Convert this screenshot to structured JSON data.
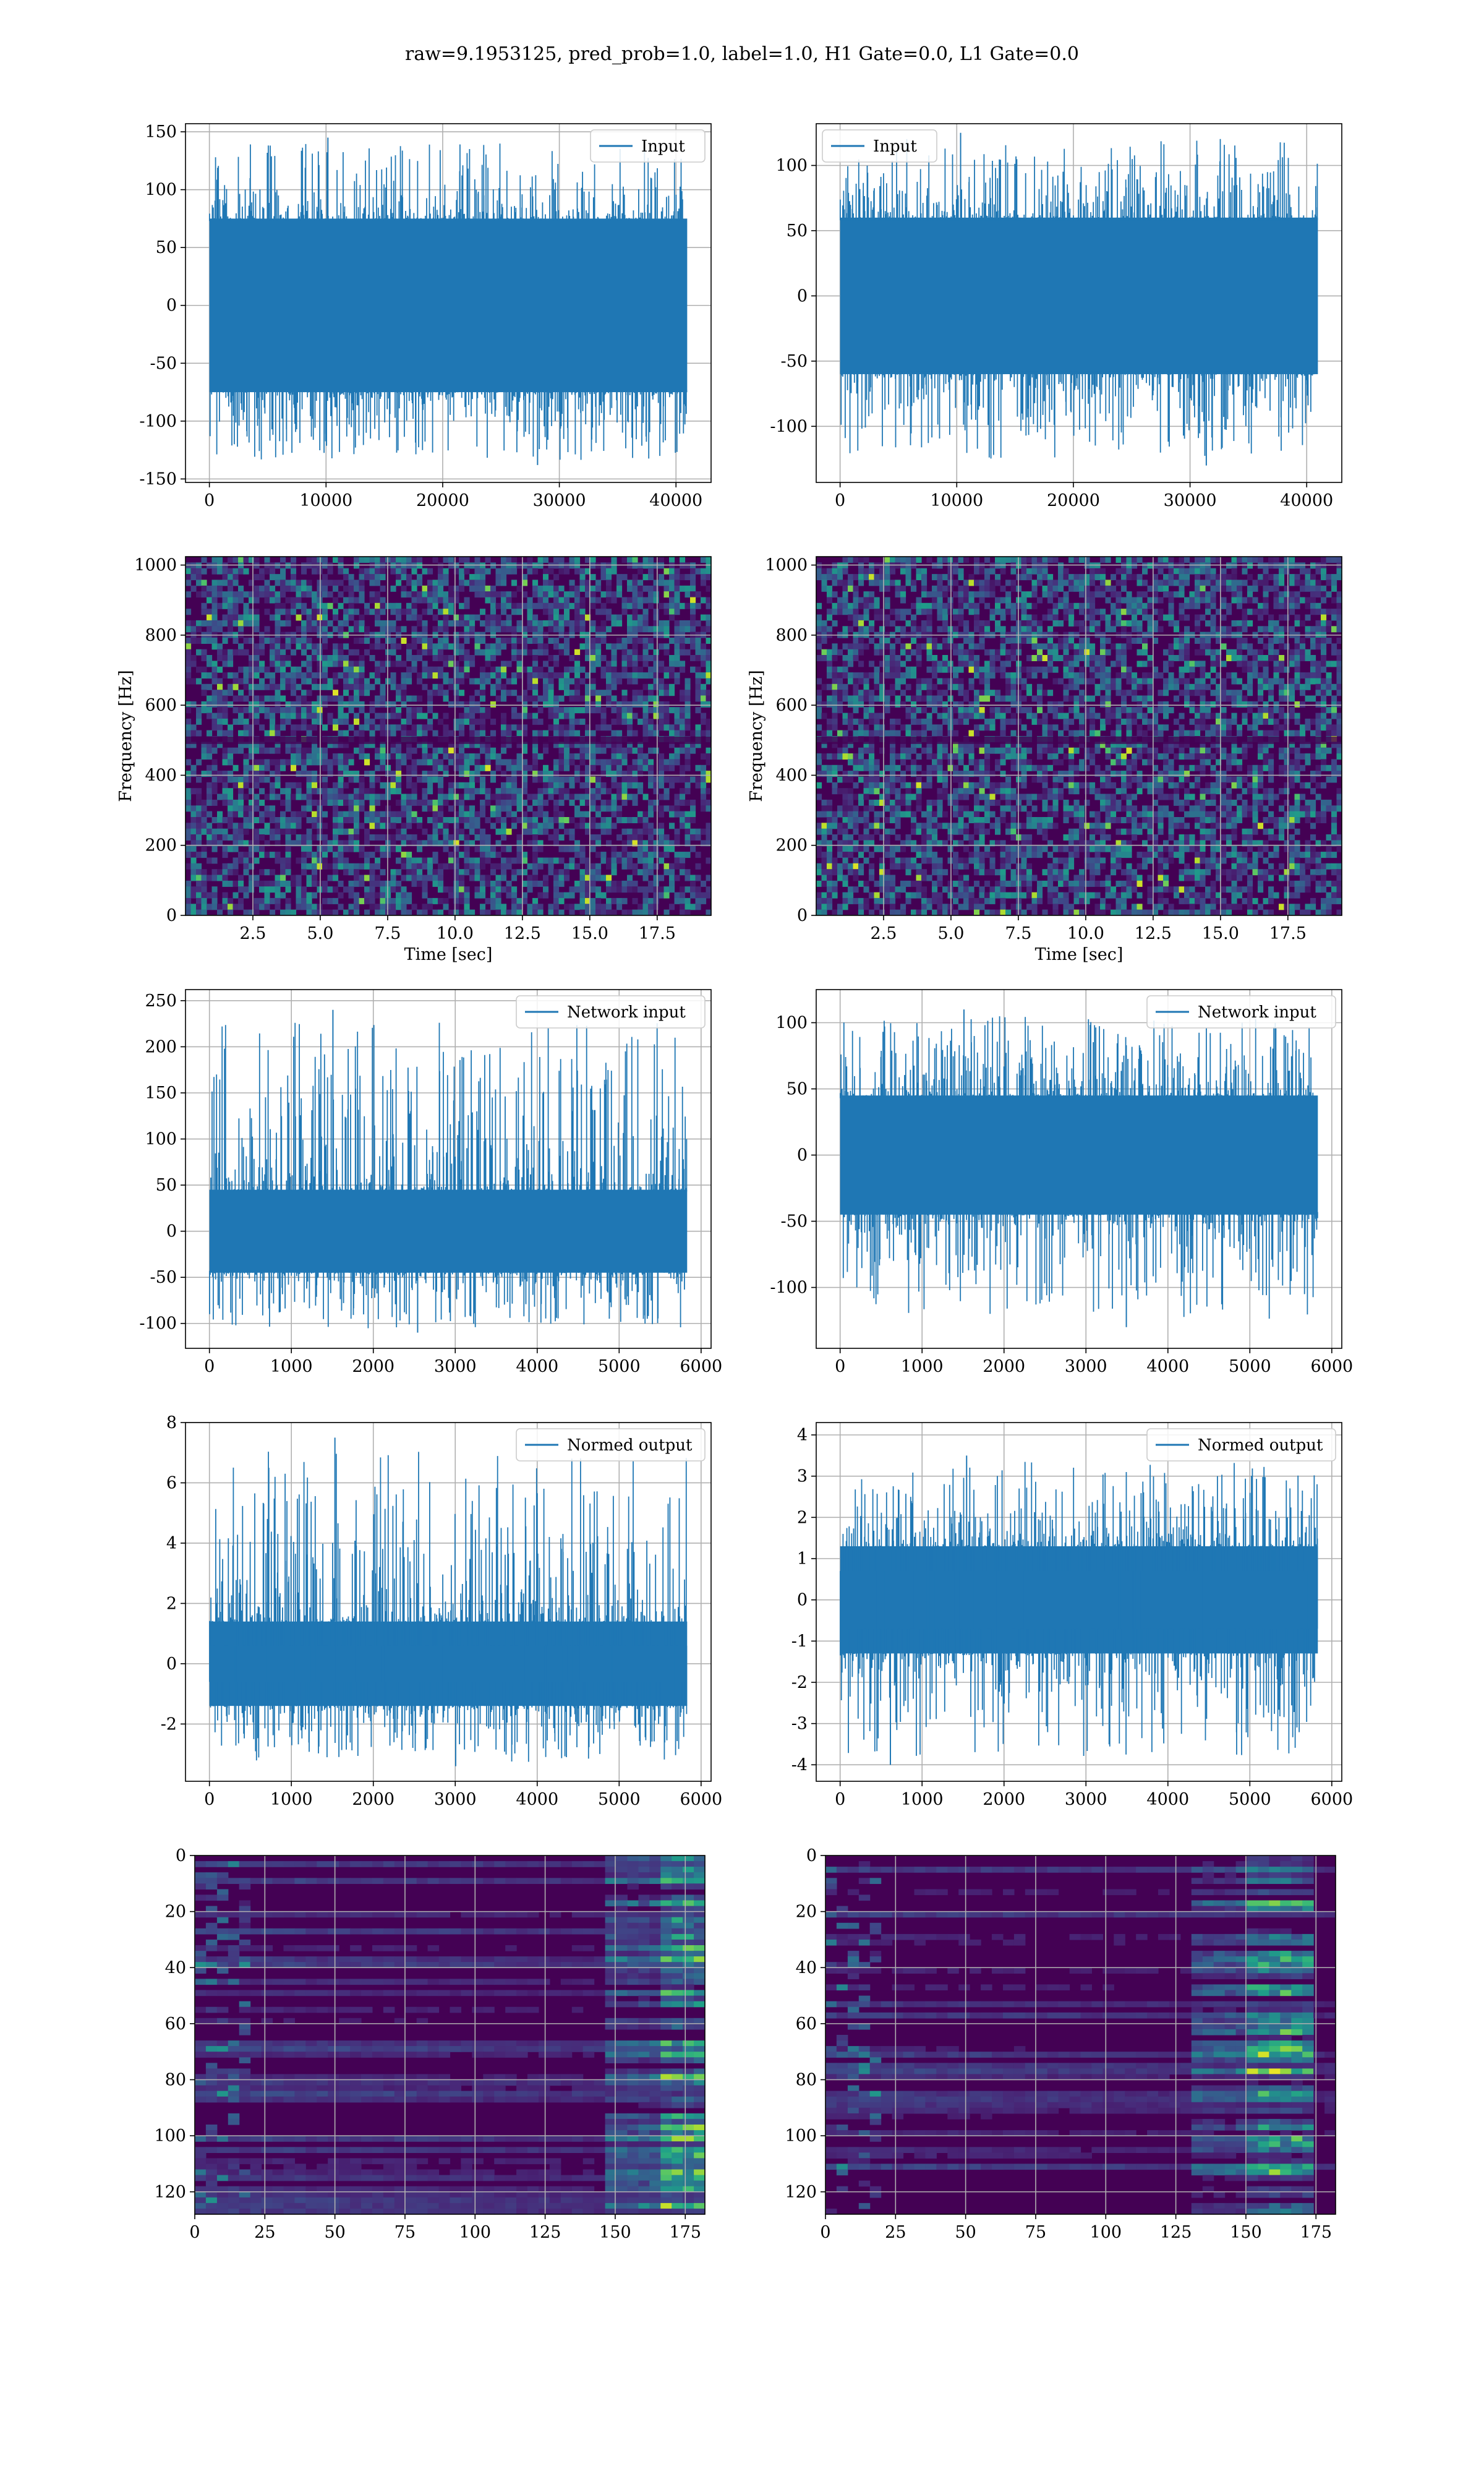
{
  "figure": {
    "title": "raw=9.1953125, pred_prob=1.0, label=1.0, H1 Gate=0.0, L1 Gate=0.0",
    "colors": {
      "line": "#1f77b4",
      "grid": "#b0b0b0",
      "axes": "#000000",
      "viridis_dark": "#440154"
    }
  },
  "chart_data": [
    {
      "id": "h1_input",
      "type": "line",
      "legend": "Input",
      "legend_loc": "upper right",
      "grid": true,
      "x_range": [
        0,
        40960
      ],
      "xlim": [
        -2048,
        43008
      ],
      "ylim": [
        -153,
        157
      ],
      "xticks": [
        0,
        10000,
        20000,
        30000,
        40000
      ],
      "yticks": [
        -150,
        -100,
        -50,
        0,
        50,
        100,
        150
      ],
      "xlabel": "",
      "ylabel": "",
      "signal": {
        "band_upper": 75,
        "band_lower": -75,
        "max": 145,
        "min": -138,
        "seed": 11
      }
    },
    {
      "id": "l1_input",
      "type": "line",
      "legend": "Input",
      "legend_loc": "upper left",
      "grid": true,
      "x_range": [
        0,
        40960
      ],
      "xlim": [
        -2048,
        43008
      ],
      "ylim": [
        -143,
        132
      ],
      "xticks": [
        0,
        10000,
        20000,
        30000,
        40000
      ],
      "yticks": [
        -100,
        -50,
        0,
        50,
        100
      ],
      "xlabel": "",
      "ylabel": "",
      "signal": {
        "band_upper": 60,
        "band_lower": -60,
        "max": 125,
        "min": -130,
        "seed": 23
      }
    },
    {
      "id": "h1_spectrogram",
      "type": "heatmap",
      "colormap": "viridis",
      "grid": true,
      "xlim": [
        0,
        19.5
      ],
      "ylim": [
        0,
        1024
      ],
      "xticks": [
        2.5,
        5.0,
        7.5,
        10.0,
        12.5,
        15.0,
        17.5
      ],
      "yticks": [
        0,
        200,
        400,
        600,
        800,
        1000
      ],
      "xlabel": "Time [sec]",
      "ylabel": "Frequency [Hz]",
      "seed": 31
    },
    {
      "id": "l1_spectrogram",
      "type": "heatmap",
      "colormap": "viridis",
      "grid": true,
      "xlim": [
        0,
        19.5
      ],
      "ylim": [
        0,
        1024
      ],
      "xticks": [
        2.5,
        5.0,
        7.5,
        10.0,
        12.5,
        15.0,
        17.5
      ],
      "yticks": [
        0,
        200,
        400,
        600,
        800,
        1000
      ],
      "xlabel": "Time [sec]",
      "ylabel": "Frequency [Hz]",
      "seed": 37
    },
    {
      "id": "h1_network_input",
      "type": "line",
      "legend": "Network input",
      "legend_loc": "upper right",
      "grid": true,
      "x_range": [
        0,
        5830
      ],
      "xlim": [
        -292,
        6122
      ],
      "ylim": [
        -127,
        262
      ],
      "xticks": [
        0,
        1000,
        2000,
        3000,
        4000,
        5000,
        6000
      ],
      "yticks": [
        -100,
        -50,
        0,
        50,
        100,
        150,
        200,
        250
      ],
      "xlabel": "",
      "ylabel": "",
      "signal": {
        "band_upper": 45,
        "band_lower": -45,
        "max": 240,
        "min": -110,
        "seed": 41
      }
    },
    {
      "id": "l1_network_input",
      "type": "line",
      "legend": "Network input",
      "legend_loc": "upper right",
      "grid": true,
      "x_range": [
        0,
        5830
      ],
      "xlim": [
        -292,
        6122
      ],
      "ylim": [
        -146,
        125
      ],
      "xticks": [
        0,
        1000,
        2000,
        3000,
        4000,
        5000,
        6000
      ],
      "yticks": [
        -100,
        -50,
        0,
        50,
        100
      ],
      "xlabel": "",
      "ylabel": "",
      "signal": {
        "band_upper": 45,
        "band_lower": -45,
        "max": 110,
        "min": -130,
        "seed": 43
      }
    },
    {
      "id": "h1_normed_output",
      "type": "line",
      "legend": "Normed output",
      "legend_loc": "upper right",
      "grid": true,
      "x_range": [
        0,
        5830
      ],
      "xlim": [
        -292,
        6122
      ],
      "ylim": [
        -3.9,
        8.0
      ],
      "xticks": [
        0,
        1000,
        2000,
        3000,
        4000,
        5000,
        6000
      ],
      "yticks": [
        -2,
        0,
        2,
        4,
        6,
        8
      ],
      "xlabel": "",
      "ylabel": "",
      "signal": {
        "band_upper": 1.4,
        "band_lower": -1.4,
        "max": 7.5,
        "min": -3.4,
        "seed": 53
      }
    },
    {
      "id": "l1_normed_output",
      "type": "line",
      "legend": "Normed output",
      "legend_loc": "upper right",
      "grid": true,
      "x_range": [
        0,
        5830
      ],
      "xlim": [
        -292,
        6122
      ],
      "ylim": [
        -4.4,
        4.3
      ],
      "xticks": [
        0,
        1000,
        2000,
        3000,
        4000,
        5000,
        6000
      ],
      "yticks": [
        -4,
        -3,
        -2,
        -1,
        0,
        1,
        2,
        3,
        4
      ],
      "xlabel": "",
      "ylabel": "",
      "signal": {
        "band_upper": 1.3,
        "band_lower": -1.3,
        "max": 3.5,
        "min": -4.0,
        "seed": 59
      }
    },
    {
      "id": "h1_activation",
      "type": "heatmap",
      "colormap": "viridis",
      "grid": true,
      "xlim": [
        0,
        182
      ],
      "ylim": [
        128,
        0
      ],
      "rows": 128,
      "cols": 182,
      "xticks": [
        0,
        25,
        50,
        75,
        100,
        125,
        150,
        175
      ],
      "yticks": [
        0,
        20,
        40,
        60,
        80,
        100,
        120
      ],
      "xlabel": "",
      "ylabel": "",
      "hot_columns": [
        165,
        182
      ],
      "seed": 61
    },
    {
      "id": "l1_activation",
      "type": "heatmap",
      "colormap": "viridis",
      "grid": true,
      "xlim": [
        0,
        182
      ],
      "ylim": [
        128,
        0
      ],
      "rows": 128,
      "cols": 182,
      "xticks": [
        0,
        25,
        50,
        75,
        100,
        125,
        150,
        175
      ],
      "yticks": [
        0,
        20,
        40,
        60,
        80,
        100,
        120
      ],
      "xlabel": "",
      "ylabel": "",
      "hot_columns": [
        150,
        175
      ],
      "seed": 67
    }
  ]
}
